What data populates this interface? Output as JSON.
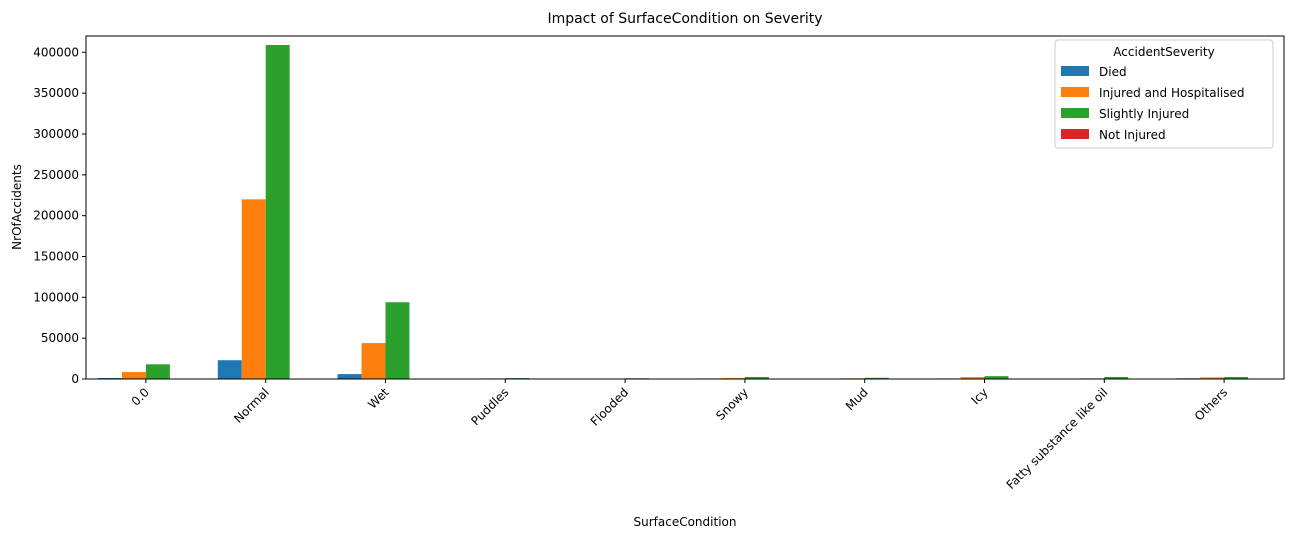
{
  "chart_data": {
    "type": "bar",
    "title": "Impact of SurfaceCondition on Severity",
    "xlabel": "SurfaceCondition",
    "ylabel": "NrOfAccidents",
    "ylim": [
      0,
      420000
    ],
    "yticks": [
      0,
      50000,
      100000,
      150000,
      200000,
      250000,
      300000,
      350000,
      400000
    ],
    "categories": [
      "0.0",
      "Normal",
      "Wet",
      "Puddles",
      "Flooded",
      "Snowy",
      "Mud",
      "Icy",
      "Fatty substance like oil",
      "Others"
    ],
    "legend_title": "AccidentSeverity",
    "legend_position": "top-right",
    "grid": false,
    "series": [
      {
        "name": "Died",
        "color": "#1f77b4",
        "values": [
          1200,
          23000,
          6000,
          100,
          60,
          700,
          150,
          700,
          100,
          900
        ]
      },
      {
        "name": "Injured and Hospitalised",
        "color": "#ff7f0e",
        "values": [
          8500,
          220000,
          44000,
          700,
          400,
          1100,
          900,
          2300,
          800,
          2000
        ]
      },
      {
        "name": "Slightly Injured",
        "color": "#2ca02c",
        "values": [
          18000,
          409000,
          94000,
          1100,
          900,
          2500,
          1500,
          3500,
          2500,
          2500
        ]
      },
      {
        "name": "Not Injured",
        "color": "#d62728",
        "values": [
          0,
          0,
          0,
          0,
          0,
          0,
          0,
          0,
          0,
          0
        ]
      }
    ]
  }
}
